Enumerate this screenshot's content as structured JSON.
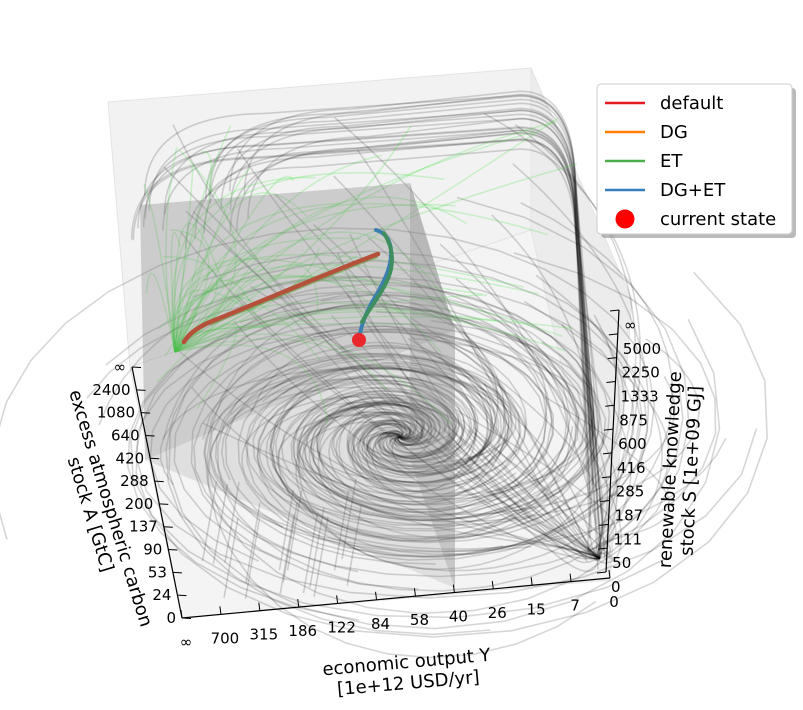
{
  "chart_data": {
    "type": "3d-streamplot",
    "axes": {
      "A": {
        "label_lines": [
          "excess atmospheric carbon",
          "stock A [GtC]"
        ],
        "ticks": [
          "0",
          "24",
          "53",
          "90",
          "137",
          "200",
          "288",
          "420",
          "640",
          "1080",
          "2400",
          "∞"
        ]
      },
      "Y": {
        "label_lines": [
          "economic output Y",
          "[1e+12 USD/yr]"
        ],
        "ticks": [
          "∞",
          "700",
          "315",
          "186",
          "122",
          "84",
          "58",
          "40",
          "26",
          "15",
          "7",
          "0"
        ]
      },
      "S": {
        "label_lines": [
          "renewable knowledge",
          "stock S [1e+09 GJ]"
        ],
        "ticks": [
          "0",
          "50",
          "111",
          "187",
          "285",
          "416",
          "600",
          "875",
          "1333",
          "2250",
          "5000",
          "∞"
        ]
      }
    },
    "legend": {
      "placement": "upper-right",
      "entries": [
        {
          "label": "default",
          "color": "#e41a1c",
          "marker": "line"
        },
        {
          "label": "DG",
          "color": "#ff7f00",
          "marker": "line"
        },
        {
          "label": "ET",
          "color": "#4daf4a",
          "marker": "line"
        },
        {
          "label": "DG+ET",
          "color": "#377eb8",
          "marker": "line"
        },
        {
          "label": "current state",
          "color": "#ff0000",
          "marker": "dot"
        }
      ]
    },
    "colors": {
      "default_flow": "#000000",
      "et_flow": "#33ee33",
      "plane": "#808080",
      "pane": "#f2f2f2",
      "current_state": "#e8282b",
      "trajectory_main": "#b5513a",
      "trajectory_alt": "#3f8f5e",
      "trajectory_start": "#3a7fb0"
    }
  }
}
